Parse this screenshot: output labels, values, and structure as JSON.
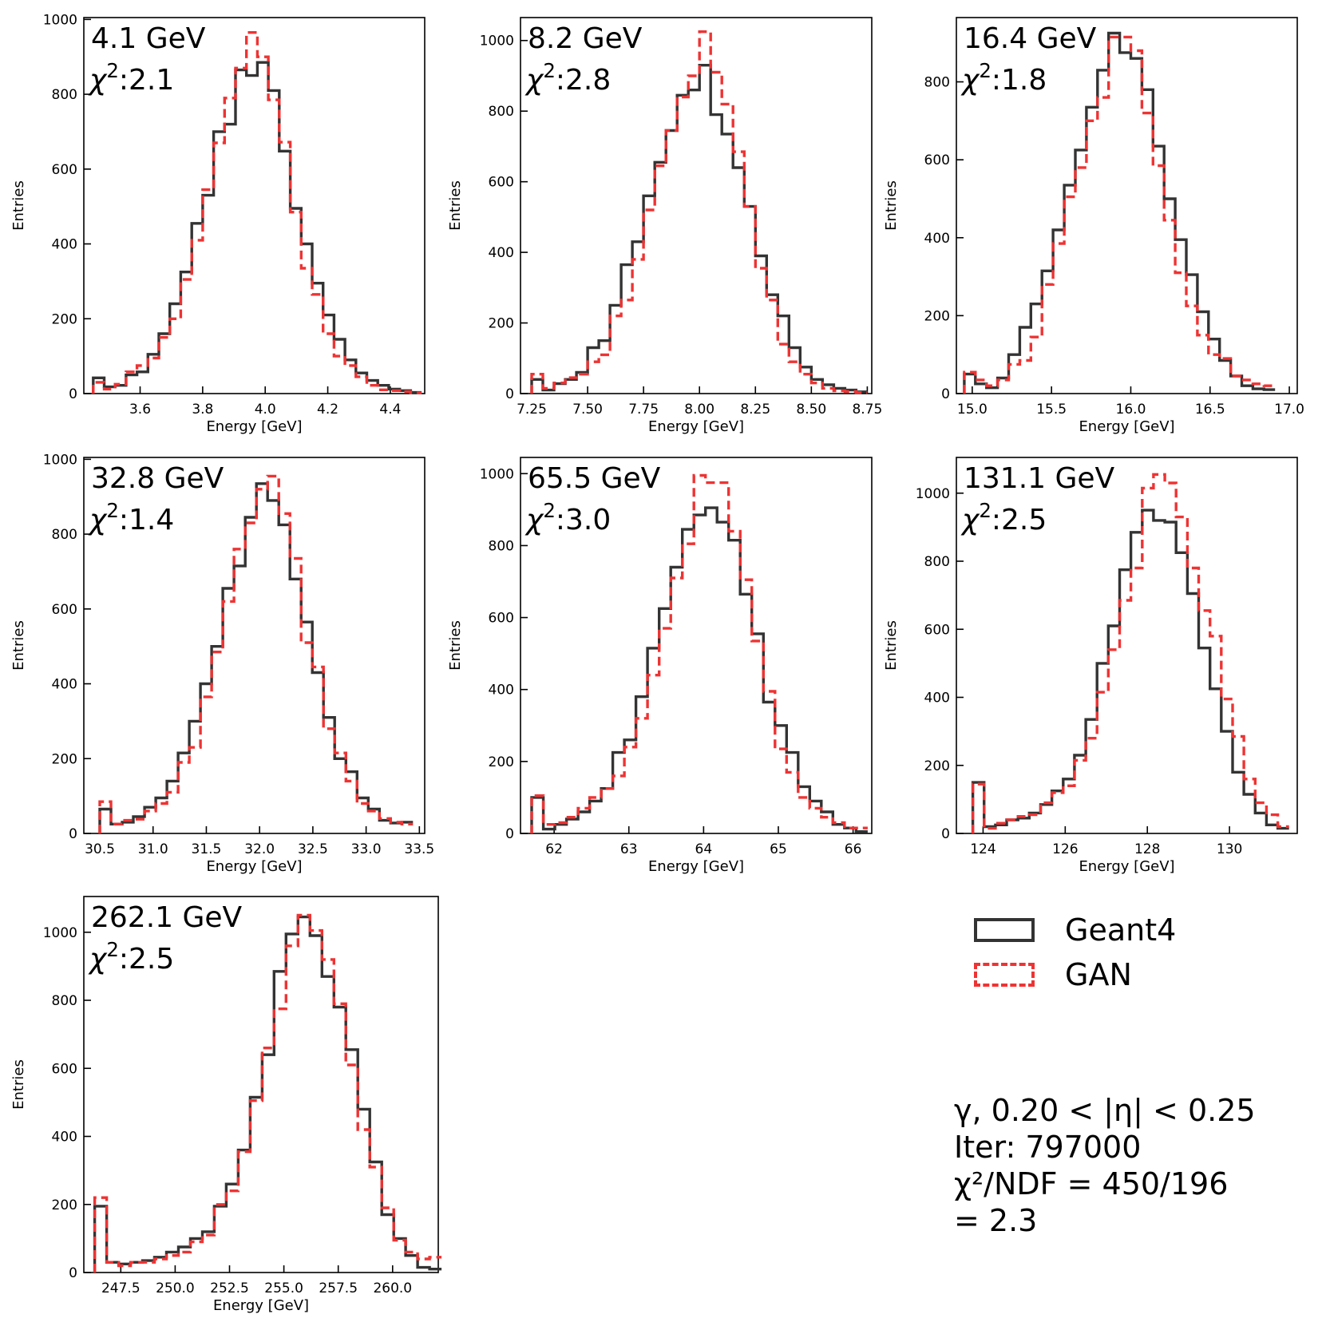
{
  "legend": {
    "geant4_label": "Geant4",
    "gan_label": "GAN",
    "geant4_color": "#333333",
    "gan_color": "#ee3333"
  },
  "info": {
    "line1": "γ, 0.20 < |η| < 0.25",
    "line2": "Iter: 797000",
    "line3": "χ²/NDF = 450/196",
    "line4": "= 2.3"
  },
  "chart_data": [
    {
      "type": "histogram",
      "title": "4.1 GeV",
      "chi2_text": "χ²:2.1",
      "xlabel": "Energy [GeV]",
      "ylabel": "Entries",
      "xlim": [
        3.42,
        4.51
      ],
      "ylim": [
        0,
        1005
      ],
      "xticks": [
        3.6,
        3.8,
        4.0,
        4.2,
        4.4
      ],
      "xtick_labels": [
        "3.6",
        "3.8",
        "4.0",
        "4.2",
        "4.4"
      ],
      "yticks": [
        0,
        200,
        400,
        600,
        800,
        1000
      ],
      "ytick_labels": [
        "0",
        "200",
        "400",
        "600",
        "800",
        "1000"
      ],
      "bin_start": 3.45,
      "bin_width": 0.035,
      "series": [
        {
          "name": "Geant4",
          "values": [
            42,
            18,
            22,
            50,
            58,
            105,
            160,
            240,
            325,
            455,
            530,
            700,
            720,
            865,
            850,
            885,
            810,
            648,
            495,
            400,
            295,
            210,
            145,
            90,
            55,
            35,
            22,
            12,
            8,
            3
          ]
        },
        {
          "name": "GAN",
          "values": [
            30,
            12,
            25,
            58,
            75,
            95,
            150,
            200,
            305,
            410,
            545,
            670,
            790,
            870,
            965,
            900,
            785,
            672,
            485,
            335,
            265,
            160,
            100,
            75,
            45,
            22,
            10,
            8,
            5,
            2
          ]
        }
      ]
    },
    {
      "type": "histogram",
      "title": "8.2 GeV",
      "chi2_text": "χ²:2.8",
      "xlabel": "Energy [GeV]",
      "ylabel": "Entries",
      "xlim": [
        7.2,
        8.77
      ],
      "ylim": [
        0,
        1065
      ],
      "xticks": [
        7.25,
        7.5,
        7.75,
        8.0,
        8.25,
        8.5,
        8.75
      ],
      "xtick_labels": [
        "7.25",
        "7.50",
        "7.75",
        "8.00",
        "8.25",
        "8.50",
        "8.75"
      ],
      "yticks": [
        0,
        200,
        400,
        600,
        800,
        1000
      ],
      "ytick_labels": [
        "0",
        "200",
        "400",
        "600",
        "800",
        "1000"
      ],
      "bin_start": 7.25,
      "bin_width": 0.05,
      "series": [
        {
          "name": "Geant4",
          "values": [
            40,
            10,
            28,
            40,
            60,
            130,
            150,
            250,
            365,
            430,
            560,
            655,
            745,
            845,
            860,
            930,
            790,
            735,
            640,
            530,
            390,
            280,
            220,
            130,
            75,
            40,
            25,
            15,
            10,
            5
          ]
        },
        {
          "name": "GAN",
          "values": [
            55,
            15,
            30,
            45,
            55,
            90,
            110,
            220,
            265,
            380,
            520,
            645,
            745,
            840,
            900,
            1025,
            910,
            820,
            685,
            530,
            355,
            265,
            140,
            90,
            55,
            30,
            15,
            8,
            6,
            3
          ]
        }
      ]
    },
    {
      "type": "histogram",
      "title": "16.4 GeV",
      "chi2_text": "χ²:1.8",
      "xlabel": "Energy [GeV]",
      "ylabel": "Entries",
      "xlim": [
        14.9,
        17.05
      ],
      "ylim": [
        0,
        965
      ],
      "xticks": [
        15.0,
        15.5,
        16.0,
        16.5,
        17.0
      ],
      "xtick_labels": [
        "15.0",
        "15.5",
        "16.0",
        "16.5",
        "17.0"
      ],
      "yticks": [
        0,
        200,
        400,
        600,
        800
      ],
      "ytick_labels": [
        "0",
        "200",
        "400",
        "600",
        "800"
      ],
      "bin_start": 14.95,
      "bin_width": 0.07,
      "series": [
        {
          "name": "Geant4",
          "values": [
            50,
            25,
            15,
            40,
            100,
            170,
            230,
            315,
            420,
            535,
            625,
            735,
            830,
            925,
            875,
            860,
            780,
            635,
            500,
            395,
            305,
            210,
            140,
            85,
            45,
            20,
            12,
            10
          ]
        },
        {
          "name": "GAN",
          "values": [
            55,
            35,
            20,
            35,
            75,
            85,
            145,
            280,
            385,
            505,
            580,
            700,
            760,
            915,
            915,
            880,
            720,
            585,
            445,
            310,
            225,
            150,
            100,
            90,
            45,
            35,
            25,
            20
          ]
        }
      ]
    },
    {
      "type": "histogram",
      "title": "32.8 GeV",
      "chi2_text": "χ²:1.4",
      "xlabel": "Energy [GeV]",
      "ylabel": "Entries",
      "xlim": [
        30.35,
        33.55
      ],
      "ylim": [
        0,
        1005
      ],
      "xticks": [
        30.5,
        31.0,
        31.5,
        32.0,
        32.5,
        33.0,
        33.5
      ],
      "xtick_labels": [
        "30.5",
        "31.0",
        "31.5",
        "32.0",
        "32.5",
        "33.0",
        "33.5"
      ],
      "yticks": [
        0,
        200,
        400,
        600,
        800,
        1000
      ],
      "ytick_labels": [
        "0",
        "200",
        "400",
        "600",
        "800",
        "1000"
      ],
      "bin_start": 30.5,
      "bin_width": 0.105,
      "series": [
        {
          "name": "Geant4",
          "values": [
            65,
            25,
            30,
            45,
            70,
            95,
            140,
            215,
            300,
            400,
            500,
            655,
            715,
            845,
            935,
            890,
            825,
            680,
            565,
            430,
            310,
            200,
            165,
            95,
            65,
            35,
            28,
            30
          ]
        },
        {
          "name": "GAN",
          "values": [
            85,
            25,
            35,
            38,
            60,
            80,
            110,
            190,
            230,
            365,
            485,
            620,
            760,
            830,
            920,
            955,
            855,
            735,
            510,
            445,
            280,
            215,
            140,
            80,
            60,
            40,
            30,
            25
          ]
        }
      ]
    },
    {
      "type": "histogram",
      "title": "65.5 GeV",
      "chi2_text": "χ²:3.0",
      "xlabel": "Energy [GeV]",
      "ylabel": "Entries",
      "xlim": [
        61.55,
        66.25
      ],
      "ylim": [
        0,
        1045
      ],
      "xticks": [
        62,
        63,
        64,
        65,
        66
      ],
      "xtick_labels": [
        "62",
        "63",
        "64",
        "65",
        "66"
      ],
      "yticks": [
        0,
        200,
        400,
        600,
        800,
        1000
      ],
      "ytick_labels": [
        "0",
        "200",
        "400",
        "600",
        "800",
        "1000"
      ],
      "bin_start": 61.7,
      "bin_width": 0.155,
      "series": [
        {
          "name": "Geant4",
          "values": [
            100,
            12,
            25,
            40,
            60,
            90,
            125,
            225,
            260,
            380,
            515,
            625,
            740,
            845,
            885,
            905,
            865,
            815,
            665,
            555,
            365,
            300,
            225,
            130,
            90,
            60,
            25,
            15,
            5
          ]
        },
        {
          "name": "GAN",
          "values": [
            105,
            25,
            30,
            45,
            70,
            100,
            125,
            160,
            240,
            320,
            440,
            570,
            710,
            805,
            995,
            975,
            975,
            840,
            705,
            535,
            395,
            235,
            170,
            100,
            70,
            45,
            30,
            15,
            15
          ]
        }
      ]
    },
    {
      "type": "histogram",
      "title": "131.1 GeV",
      "chi2_text": "χ²:2.5",
      "xlabel": "Energy [GeV]",
      "ylabel": "Entries",
      "xlim": [
        123.35,
        131.65
      ],
      "ylim": [
        0,
        1105
      ],
      "xticks": [
        124,
        126,
        128,
        130
      ],
      "xtick_labels": [
        "124",
        "126",
        "128",
        "130"
      ],
      "yticks": [
        0,
        200,
        400,
        600,
        800,
        1000
      ],
      "ytick_labels": [
        "0",
        "200",
        "400",
        "600",
        "800",
        "1000"
      ],
      "bin_start": 123.75,
      "bin_width": 0.275,
      "series": [
        {
          "name": "Geant4",
          "values": [
            150,
            20,
            25,
            40,
            45,
            60,
            85,
            125,
            160,
            230,
            335,
            500,
            610,
            775,
            885,
            950,
            920,
            915,
            825,
            705,
            545,
            425,
            300,
            180,
            115,
            60,
            25,
            15
          ]
        },
        {
          "name": "GAN",
          "values": [
            145,
            15,
            30,
            40,
            50,
            55,
            90,
            120,
            140,
            215,
            280,
            415,
            540,
            685,
            780,
            1015,
            1055,
            1030,
            930,
            780,
            655,
            580,
            395,
            285,
            160,
            90,
            55,
            20
          ]
        }
      ]
    },
    {
      "type": "histogram",
      "title": "262.1 GeV",
      "chi2_text": "χ²:2.5",
      "xlabel": "Energy [GeV]",
      "ylabel": "Entries",
      "xlim": [
        245.8,
        262.1
      ],
      "ylim": [
        0,
        1105
      ],
      "xticks": [
        247.5,
        250.0,
        252.5,
        255.0,
        257.5,
        260.0
      ],
      "xtick_labels": [
        "247.5",
        "250.0",
        "252.5",
        "255.0",
        "257.5",
        "260.0"
      ],
      "yticks": [
        0,
        200,
        400,
        600,
        800,
        1000
      ],
      "ytick_labels": [
        "0",
        "200",
        "400",
        "600",
        "800",
        "1000"
      ],
      "bin_start": 246.3,
      "bin_width": 0.55,
      "series": [
        {
          "name": "Geant4",
          "values": [
            195,
            30,
            25,
            30,
            35,
            45,
            60,
            75,
            100,
            120,
            195,
            260,
            360,
            515,
            640,
            885,
            995,
            1045,
            990,
            870,
            780,
            655,
            480,
            325,
            170,
            100,
            50,
            15,
            10
          ]
        },
        {
          "name": "GAN",
          "values": [
            220,
            30,
            20,
            30,
            30,
            40,
            50,
            60,
            90,
            110,
            200,
            240,
            355,
            505,
            660,
            775,
            960,
            1050,
            1005,
            920,
            790,
            610,
            420,
            310,
            190,
            95,
            60,
            40,
            45
          ]
        }
      ]
    }
  ]
}
